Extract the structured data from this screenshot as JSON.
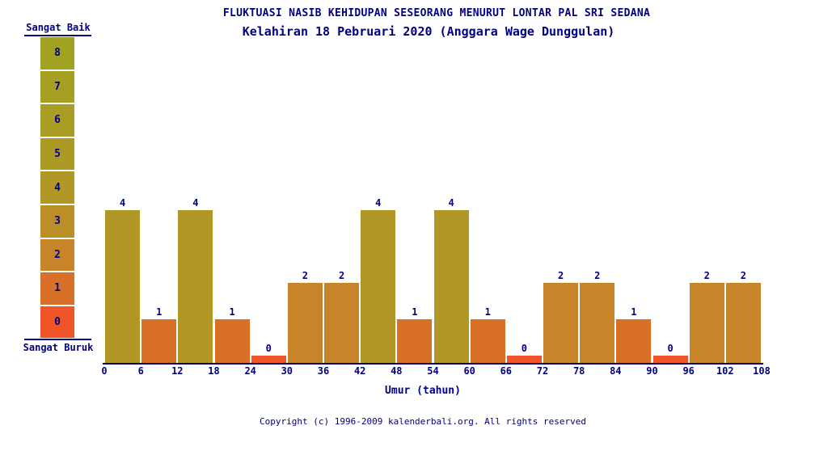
{
  "title": "FLUKTUASI NASIB KEHIDUPAN SESEORANG MENURUT LONTAR PAL SRI SEDANA",
  "subtitle": "Kelahiran 18 Pebruari 2020 (Anggara Wage Dunggulan)",
  "legend": {
    "top_label": "Sangat Baik",
    "bottom_label": "Sangat Buruk",
    "items": [
      {
        "value": "8",
        "color": "#a1a122"
      },
      {
        "value": "7",
        "color": "#a59f23"
      },
      {
        "value": "6",
        "color": "#a99d24"
      },
      {
        "value": "5",
        "color": "#ad9a25"
      },
      {
        "value": "4",
        "color": "#b19726"
      },
      {
        "value": "3",
        "color": "#bb8e27"
      },
      {
        "value": "2",
        "color": "#c88428"
      },
      {
        "value": "1",
        "color": "#d87028"
      },
      {
        "value": "0",
        "color": "#f0552a"
      }
    ]
  },
  "chart_data": {
    "type": "bar",
    "title": "FLUKTUASI NASIB KEHIDUPAN SESEORANG MENURUT LONTAR PAL SRI SEDANA",
    "subtitle": "Kelahiran 18 Pebruari 2020 (Anggara Wage Dunggulan)",
    "xlabel": "Umur (tahun)",
    "ylabel": "",
    "ylim": [
      0,
      8
    ],
    "x_ticks": [
      0,
      6,
      12,
      18,
      24,
      30,
      36,
      42,
      48,
      54,
      60,
      66,
      72,
      78,
      84,
      90,
      96,
      102,
      108
    ],
    "categories": [
      "0-6",
      "6-12",
      "12-18",
      "18-24",
      "24-30",
      "30-36",
      "36-42",
      "42-48",
      "48-54",
      "54-60",
      "60-66",
      "66-72",
      "72-78",
      "78-84",
      "84-90",
      "90-96",
      "96-102",
      "102-108"
    ],
    "values": [
      4,
      1,
      4,
      1,
      0,
      2,
      2,
      4,
      1,
      4,
      1,
      0,
      2,
      2,
      1,
      0,
      2,
      2
    ],
    "scale_labels": {
      "best": "Sangat Baik",
      "worst": "Sangat Buruk"
    },
    "legend_position": "left",
    "grid": false
  },
  "colors": {
    "text": "#000080",
    "axis": "#000080",
    "background": "#ffffff",
    "value_colors": {
      "0": "#f0552a",
      "1": "#d87028",
      "2": "#c88428",
      "3": "#bb8e27",
      "4": "#b19726",
      "5": "#ad9a25",
      "6": "#a99d24",
      "7": "#a59f23",
      "8": "#a1a122"
    }
  },
  "footer": {
    "copyright": "Copyright (c) 1996-2009 kalenderbali.org. All rights reserved"
  }
}
